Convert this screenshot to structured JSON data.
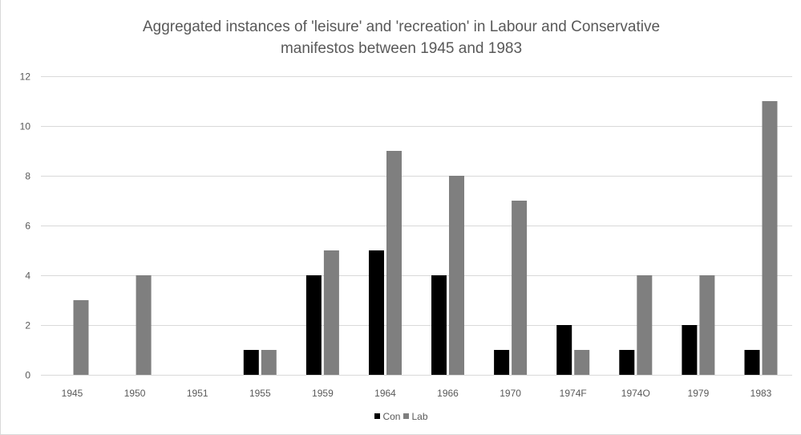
{
  "chart_data": {
    "type": "bar",
    "title_lines": [
      "Aggregated instances of 'leisure' and 'recreation' in Labour and Conservative",
      "manifestos between 1945 and 1983"
    ],
    "xlabel": "",
    "ylabel": "",
    "categories": [
      "1945",
      "1950",
      "1951",
      "1955",
      "1959",
      "1964",
      "1966",
      "1970",
      "1974F",
      "1974O",
      "1979",
      "1983"
    ],
    "series": [
      {
        "name": "Con",
        "color": "#000000",
        "values": [
          0,
          0,
          0,
          1,
          4,
          5,
          4,
          1,
          2,
          1,
          2,
          1
        ]
      },
      {
        "name": "Lab",
        "color": "#7f7f7f",
        "values": [
          3,
          4,
          0,
          1,
          5,
          9,
          8,
          7,
          1,
          4,
          4,
          11
        ]
      }
    ],
    "ylim": [
      0,
      12
    ],
    "yticks": [
      0,
      2,
      4,
      6,
      8,
      10,
      12
    ],
    "grid": true,
    "legend_position": "bottom"
  }
}
